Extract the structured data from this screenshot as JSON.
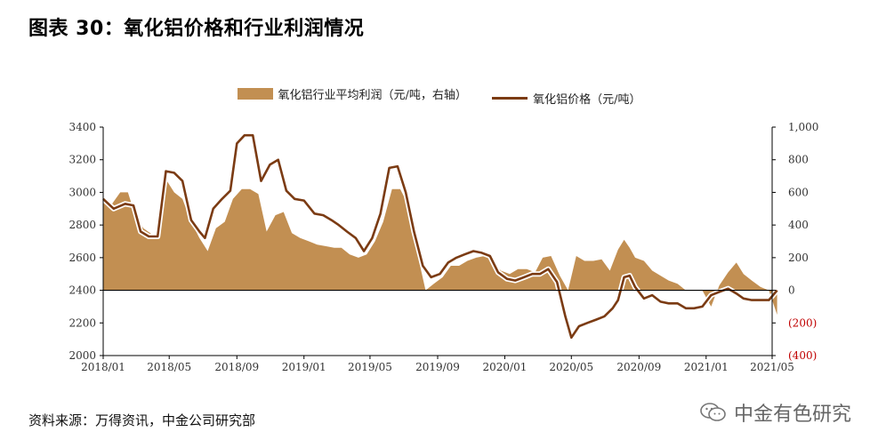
{
  "page": {
    "title": "图表 30：氧化铝价格和行业利润情况",
    "source": "资料来源：万得资讯，中金公司研究部",
    "brand": "中金有色研究",
    "brand_icon": "wechat-icon"
  },
  "chart_data": {
    "type": "line",
    "title": "图表 30：氧化铝价格和行业利润情况",
    "xlabel": "",
    "ylabel": "",
    "legend_position": "top",
    "grid": false,
    "x_ticks": [
      "2018/01",
      "2018/05",
      "2018/09",
      "2019/01",
      "2019/05",
      "2019/09",
      "2020/01",
      "2020/05",
      "2020/09",
      "2021/01",
      "2021/05"
    ],
    "x_range": [
      "2018-01-01",
      "2021-05-01"
    ],
    "y_left": {
      "min": 2000,
      "max": 3400,
      "ticks": [
        "2000",
        "2200",
        "2400",
        "2600",
        "2800",
        "3000",
        "3200",
        "3400"
      ]
    },
    "y_right": {
      "min": -400,
      "max": 1000,
      "ticks": [
        "(400)",
        "(200)",
        "0",
        "200",
        "400",
        "600",
        "800",
        "1,000"
      ],
      "tick_values": [
        -400,
        -200,
        0,
        200,
        400,
        600,
        800,
        1000
      ],
      "negative_color": "#c00000"
    },
    "series": [
      {
        "name": "氧化铝行业平均利润（元/吨，右轴）",
        "type": "area",
        "axis": "right",
        "color": "#c28f52",
        "points": [
          [
            "2018-01-01",
            550
          ],
          [
            "2018-01-15",
            520
          ],
          [
            "2018-02-01",
            600
          ],
          [
            "2018-02-15",
            600
          ],
          [
            "2018-03-01",
            450
          ],
          [
            "2018-03-15",
            380
          ],
          [
            "2018-04-01",
            340
          ],
          [
            "2018-04-10",
            320
          ],
          [
            "2018-04-25",
            680
          ],
          [
            "2018-05-10",
            600
          ],
          [
            "2018-05-25",
            560
          ],
          [
            "2018-06-10",
            420
          ],
          [
            "2018-06-25",
            320
          ],
          [
            "2018-07-10",
            240
          ],
          [
            "2018-07-25",
            380
          ],
          [
            "2018-08-10",
            420
          ],
          [
            "2018-08-25",
            560
          ],
          [
            "2018-09-10",
            620
          ],
          [
            "2018-09-25",
            620
          ],
          [
            "2018-10-10",
            590
          ],
          [
            "2018-10-25",
            360
          ],
          [
            "2018-11-10",
            460
          ],
          [
            "2018-11-25",
            480
          ],
          [
            "2018-12-10",
            350
          ],
          [
            "2018-12-25",
            320
          ],
          [
            "2019-01-10",
            300
          ],
          [
            "2019-01-25",
            280
          ],
          [
            "2019-02-10",
            270
          ],
          [
            "2019-02-25",
            260
          ],
          [
            "2019-03-10",
            260
          ],
          [
            "2019-03-25",
            220
          ],
          [
            "2019-04-10",
            200
          ],
          [
            "2019-04-25",
            220
          ],
          [
            "2019-05-10",
            300
          ],
          [
            "2019-05-25",
            420
          ],
          [
            "2019-06-10",
            620
          ],
          [
            "2019-06-25",
            620
          ],
          [
            "2019-07-10",
            520
          ],
          [
            "2019-07-25",
            240
          ],
          [
            "2019-08-10",
            0
          ],
          [
            "2019-08-25",
            40
          ],
          [
            "2019-09-10",
            80
          ],
          [
            "2019-09-25",
            150
          ],
          [
            "2019-10-10",
            150
          ],
          [
            "2019-10-25",
            180
          ],
          [
            "2019-11-10",
            200
          ],
          [
            "2019-11-25",
            210
          ],
          [
            "2019-12-10",
            180
          ],
          [
            "2019-12-25",
            120
          ],
          [
            "2020-01-10",
            100
          ],
          [
            "2020-01-25",
            130
          ],
          [
            "2020-02-10",
            130
          ],
          [
            "2020-02-25",
            110
          ],
          [
            "2020-03-10",
            200
          ],
          [
            "2020-03-25",
            210
          ],
          [
            "2020-04-10",
            90
          ],
          [
            "2020-04-25",
            0
          ],
          [
            "2020-05-10",
            210
          ],
          [
            "2020-05-25",
            180
          ],
          [
            "2020-06-10",
            180
          ],
          [
            "2020-06-25",
            190
          ],
          [
            "2020-07-10",
            120
          ],
          [
            "2020-07-25",
            250
          ],
          [
            "2020-08-05",
            310
          ],
          [
            "2020-08-15",
            260
          ],
          [
            "2020-08-25",
            200
          ],
          [
            "2020-09-10",
            180
          ],
          [
            "2020-09-25",
            120
          ],
          [
            "2020-10-10",
            90
          ],
          [
            "2020-10-25",
            60
          ],
          [
            "2020-11-10",
            40
          ],
          [
            "2020-11-25",
            0
          ],
          [
            "2020-12-10",
            0
          ],
          [
            "2020-12-25",
            0
          ],
          [
            "2021-01-10",
            -100
          ],
          [
            "2021-01-25",
            30
          ],
          [
            "2021-02-10",
            110
          ],
          [
            "2021-02-25",
            170
          ],
          [
            "2021-03-10",
            100
          ],
          [
            "2021-03-25",
            60
          ],
          [
            "2021-04-10",
            20
          ],
          [
            "2021-04-25",
            0
          ],
          [
            "2021-05-10",
            -150
          ]
        ]
      },
      {
        "name": "氧化铝价格（元/吨）",
        "type": "line",
        "axis": "left",
        "color": "#7b3b13",
        "points": [
          [
            "2018-01-01",
            2960
          ],
          [
            "2018-01-20",
            2900
          ],
          [
            "2018-02-10",
            2930
          ],
          [
            "2018-02-25",
            2920
          ],
          [
            "2018-03-10",
            2760
          ],
          [
            "2018-03-25",
            2730
          ],
          [
            "2018-04-10",
            2730
          ],
          [
            "2018-04-25",
            3130
          ],
          [
            "2018-05-10",
            3120
          ],
          [
            "2018-05-25",
            3070
          ],
          [
            "2018-06-10",
            2830
          ],
          [
            "2018-06-25",
            2760
          ],
          [
            "2018-07-05",
            2720
          ],
          [
            "2018-07-20",
            2900
          ],
          [
            "2018-08-05",
            2960
          ],
          [
            "2018-08-20",
            3010
          ],
          [
            "2018-09-01",
            3300
          ],
          [
            "2018-09-15",
            3350
          ],
          [
            "2018-09-30",
            3350
          ],
          [
            "2018-10-15",
            3070
          ],
          [
            "2018-10-31",
            3170
          ],
          [
            "2018-11-15",
            3200
          ],
          [
            "2018-11-30",
            3010
          ],
          [
            "2018-12-15",
            2960
          ],
          [
            "2019-01-01",
            2950
          ],
          [
            "2019-01-20",
            2870
          ],
          [
            "2019-02-05",
            2860
          ],
          [
            "2019-02-20",
            2830
          ],
          [
            "2019-03-05",
            2800
          ],
          [
            "2019-03-20",
            2760
          ],
          [
            "2019-04-05",
            2720
          ],
          [
            "2019-04-20",
            2640
          ],
          [
            "2019-05-05",
            2720
          ],
          [
            "2019-05-20",
            2870
          ],
          [
            "2019-06-05",
            3150
          ],
          [
            "2019-06-20",
            3160
          ],
          [
            "2019-07-05",
            3000
          ],
          [
            "2019-07-20",
            2760
          ],
          [
            "2019-08-05",
            2550
          ],
          [
            "2019-08-20",
            2480
          ],
          [
            "2019-09-05",
            2500
          ],
          [
            "2019-09-20",
            2570
          ],
          [
            "2019-10-05",
            2600
          ],
          [
            "2019-10-20",
            2620
          ],
          [
            "2019-11-05",
            2640
          ],
          [
            "2019-11-20",
            2630
          ],
          [
            "2019-12-05",
            2610
          ],
          [
            "2019-12-20",
            2510
          ],
          [
            "2020-01-05",
            2470
          ],
          [
            "2020-01-20",
            2460
          ],
          [
            "2020-02-05",
            2480
          ],
          [
            "2020-02-20",
            2500
          ],
          [
            "2020-03-05",
            2500
          ],
          [
            "2020-03-20",
            2530
          ],
          [
            "2020-04-05",
            2450
          ],
          [
            "2020-04-20",
            2240
          ],
          [
            "2020-05-01",
            2110
          ],
          [
            "2020-05-15",
            2180
          ],
          [
            "2020-05-30",
            2200
          ],
          [
            "2020-06-15",
            2220
          ],
          [
            "2020-06-30",
            2240
          ],
          [
            "2020-07-15",
            2290
          ],
          [
            "2020-07-25",
            2340
          ],
          [
            "2020-08-05",
            2480
          ],
          [
            "2020-08-15",
            2490
          ],
          [
            "2020-08-25",
            2420
          ],
          [
            "2020-09-10",
            2350
          ],
          [
            "2020-09-25",
            2370
          ],
          [
            "2020-10-10",
            2330
          ],
          [
            "2020-10-25",
            2320
          ],
          [
            "2020-11-10",
            2320
          ],
          [
            "2020-11-25",
            2290
          ],
          [
            "2020-12-10",
            2290
          ],
          [
            "2020-12-25",
            2300
          ],
          [
            "2021-01-10",
            2370
          ],
          [
            "2021-01-25",
            2390
          ],
          [
            "2021-02-10",
            2410
          ],
          [
            "2021-02-25",
            2380
          ],
          [
            "2021-03-10",
            2350
          ],
          [
            "2021-03-25",
            2340
          ],
          [
            "2021-04-10",
            2340
          ],
          [
            "2021-04-25",
            2340
          ],
          [
            "2021-05-10",
            2400
          ]
        ]
      }
    ]
  }
}
